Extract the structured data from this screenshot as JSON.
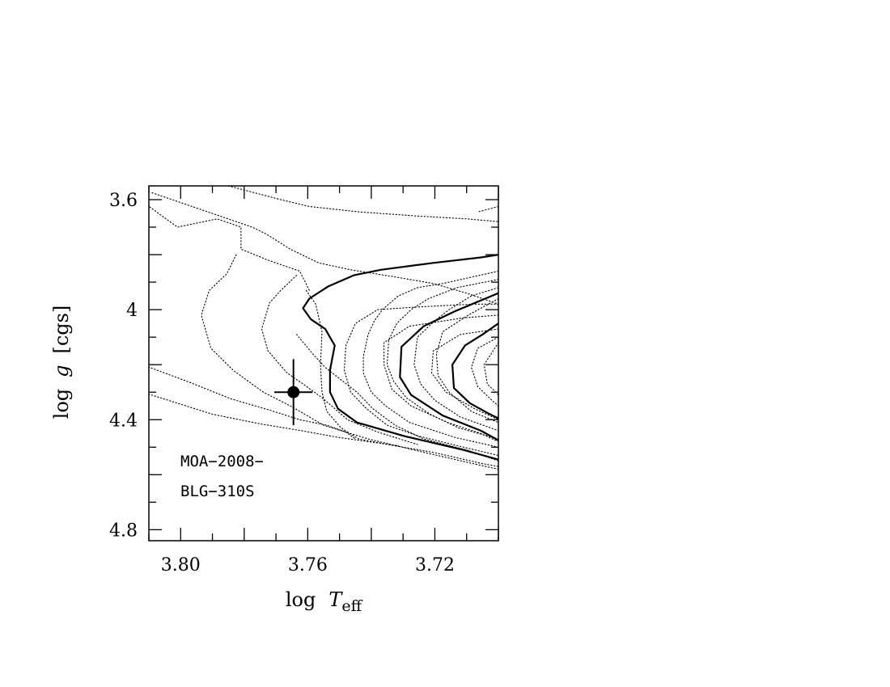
{
  "chart_data": {
    "type": "line",
    "title": "",
    "xlabel": "log T_eff",
    "ylabel": "log g [cgs]",
    "xlabel_main": "log",
    "xlabel_var": "T",
    "xlabel_sub": "eff",
    "ylabel_main": "log",
    "ylabel_var": "g",
    "ylabel_unit": "[cgs]",
    "xlim": [
      3.81,
      3.7
    ],
    "ylim": [
      4.84,
      3.55
    ],
    "x_reversed": true,
    "y_reversed": true,
    "x_ticks": [
      {
        "value": 3.8,
        "label": "3.80"
      },
      {
        "value": 3.76,
        "label": "3.76"
      },
      {
        "value": 3.72,
        "label": "3.72"
      }
    ],
    "y_ticks": [
      {
        "value": 3.6,
        "label": "3.6"
      },
      {
        "value": 4.0,
        "label": "4"
      },
      {
        "value": 4.4,
        "label": "4.4"
      },
      {
        "value": 4.8,
        "label": "4.8"
      }
    ],
    "annotation_lines": [
      "MOA−2008−",
      "BLG−310S"
    ],
    "data_point": {
      "x": 3.7645,
      "y": 4.3,
      "xerr": 0.005,
      "yerr": 0.12
    },
    "series": [
      {
        "style": "solid",
        "points": [
          [
            3.7,
            3.8
          ],
          [
            3.7055,
            3.81
          ],
          [
            3.7205,
            3.83
          ],
          [
            3.737,
            3.855
          ],
          [
            3.7455,
            3.875
          ],
          [
            3.7535,
            3.915
          ],
          [
            3.7595,
            3.96
          ],
          [
            3.7615,
            3.995
          ],
          [
            3.759,
            4.035
          ],
          [
            3.7545,
            4.07
          ],
          [
            3.7515,
            4.13
          ],
          [
            3.753,
            4.22
          ],
          [
            3.753,
            4.3
          ],
          [
            3.7505,
            4.36
          ],
          [
            3.7445,
            4.41
          ],
          [
            3.7295,
            4.46
          ],
          [
            3.711,
            4.51
          ],
          [
            3.7,
            4.545
          ]
        ]
      },
      {
        "style": "solid",
        "points": [
          [
            3.7,
            3.94
          ],
          [
            3.7135,
            4.005
          ],
          [
            3.7235,
            4.06
          ],
          [
            3.7305,
            4.135
          ],
          [
            3.731,
            4.245
          ],
          [
            3.7275,
            4.31
          ],
          [
            3.7175,
            4.385
          ],
          [
            3.7055,
            4.44
          ],
          [
            3.7,
            4.475
          ]
        ]
      },
      {
        "style": "solid",
        "points": [
          [
            3.7,
            4.05
          ],
          [
            3.705,
            4.09
          ],
          [
            3.7105,
            4.13
          ],
          [
            3.7145,
            4.2
          ],
          [
            3.714,
            4.285
          ],
          [
            3.709,
            4.34
          ],
          [
            3.7035,
            4.375
          ],
          [
            3.7,
            4.395
          ]
        ]
      },
      {
        "style": "dotted",
        "points": [
          [
            3.809,
            3.575
          ],
          [
            3.7775,
            3.7
          ],
          [
            3.773,
            3.725
          ],
          [
            3.7655,
            3.78
          ],
          [
            3.7565,
            3.83
          ],
          [
            3.7465,
            3.855
          ],
          [
            3.733,
            3.88
          ],
          [
            3.7205,
            3.905
          ],
          [
            3.71,
            3.94
          ],
          [
            3.7,
            3.98
          ]
        ]
      },
      {
        "style": "dotted",
        "points": [
          [
            3.7605,
            3.93
          ],
          [
            3.7575,
            3.98
          ],
          [
            3.7555,
            4.08
          ],
          [
            3.756,
            4.2
          ],
          [
            3.7555,
            4.3
          ],
          [
            3.754,
            4.37
          ],
          [
            3.7495,
            4.43
          ],
          [
            3.744,
            4.47
          ],
          [
            3.735,
            4.49
          ],
          [
            3.72,
            4.52
          ],
          [
            3.705,
            4.56
          ],
          [
            3.7,
            4.57
          ]
        ]
      },
      {
        "style": "dotted",
        "points": [
          [
            3.7,
            3.98
          ],
          [
            3.708,
            3.98
          ],
          [
            3.725,
            3.99
          ],
          [
            3.738,
            4.0
          ],
          [
            3.745,
            4.05
          ],
          [
            3.748,
            4.13
          ],
          [
            3.7485,
            4.22
          ],
          [
            3.7465,
            4.3
          ],
          [
            3.7415,
            4.36
          ],
          [
            3.735,
            4.42
          ],
          [
            3.725,
            4.46
          ],
          [
            3.711,
            4.5
          ],
          [
            3.7,
            4.53
          ]
        ]
      },
      {
        "style": "dotted",
        "points": [
          [
            3.7,
            4.02
          ],
          [
            3.711,
            4.03
          ],
          [
            3.728,
            4.06
          ],
          [
            3.736,
            4.12
          ],
          [
            3.736,
            4.2
          ],
          [
            3.7335,
            4.29
          ],
          [
            3.7275,
            4.35
          ],
          [
            3.716,
            4.41
          ],
          [
            3.7055,
            4.45
          ],
          [
            3.7,
            4.48
          ]
        ]
      },
      {
        "style": "dotted",
        "points": [
          [
            3.7,
            4.07
          ],
          [
            3.712,
            4.09
          ],
          [
            3.7205,
            4.15
          ],
          [
            3.721,
            4.23
          ],
          [
            3.7165,
            4.3
          ],
          [
            3.7075,
            4.36
          ],
          [
            3.7,
            4.4
          ]
        ]
      },
      {
        "style": "dotted",
        "points": [
          [
            3.8105,
            3.62
          ],
          [
            3.801,
            3.7
          ],
          [
            3.7885,
            3.67
          ],
          [
            3.781,
            3.7
          ],
          [
            3.781,
            3.78
          ],
          [
            3.7725,
            3.82
          ],
          [
            3.7625,
            3.86
          ],
          [
            3.7595,
            3.93
          ]
        ]
      },
      {
        "style": "dotted",
        "points": [
          [
            3.785,
            3.55
          ],
          [
            3.7685,
            3.6
          ],
          [
            3.7595,
            3.625
          ],
          [
            3.7435,
            3.645
          ],
          [
            3.725,
            3.66
          ],
          [
            3.71,
            3.67
          ],
          [
            3.7,
            3.68
          ]
        ]
      },
      {
        "style": "dotted",
        "points": [
          [
            3.7,
            3.625
          ],
          [
            3.7065,
            3.645
          ]
        ]
      },
      {
        "style": "dotted",
        "points": [
          [
            3.812,
            4.2
          ],
          [
            3.797,
            4.265
          ],
          [
            3.784,
            4.325
          ],
          [
            3.772,
            4.365
          ],
          [
            3.7625,
            4.4
          ],
          [
            3.754,
            4.42
          ],
          [
            3.748,
            4.445
          ],
          [
            3.745,
            4.47
          ]
        ]
      },
      {
        "style": "dotted",
        "points": [
          [
            3.812,
            4.3
          ],
          [
            3.79,
            4.38
          ],
          [
            3.775,
            4.415
          ],
          [
            3.762,
            4.44
          ],
          [
            3.75,
            4.465
          ],
          [
            3.7315,
            4.495
          ]
        ]
      },
      {
        "style": "dotted",
        "points": [
          [
            3.7825,
            3.8
          ],
          [
            3.7855,
            3.87
          ],
          [
            3.791,
            3.93
          ],
          [
            3.7935,
            4.02
          ],
          [
            3.7905,
            4.14
          ],
          [
            3.7835,
            4.22
          ],
          [
            3.774,
            4.3
          ],
          [
            3.7655,
            4.35
          ],
          [
            3.755,
            4.42
          ],
          [
            3.741,
            4.47
          ],
          [
            3.723,
            4.52
          ],
          [
            3.706,
            4.565
          ],
          [
            3.7,
            4.58
          ]
        ]
      },
      {
        "style": "dotted",
        "points": [
          [
            3.7635,
            3.875
          ],
          [
            3.7685,
            3.93
          ],
          [
            3.772,
            3.975
          ],
          [
            3.7745,
            4.07
          ],
          [
            3.7725,
            4.15
          ],
          [
            3.7665,
            4.23
          ],
          [
            3.7615,
            4.27
          ],
          [
            3.7555,
            4.32
          ],
          [
            3.7475,
            4.4
          ],
          [
            3.738,
            4.445
          ],
          [
            3.7255,
            4.49
          ]
        ]
      },
      {
        "style": "dotted",
        "points": [
          [
            3.7635,
            4.09
          ],
          [
            3.7585,
            4.16
          ],
          [
            3.7545,
            4.21
          ],
          [
            3.749,
            4.26
          ],
          [
            3.7445,
            4.3
          ],
          [
            3.7395,
            4.36
          ],
          [
            3.7325,
            4.42
          ],
          [
            3.7235,
            4.47
          ],
          [
            3.71,
            4.51
          ],
          [
            3.7,
            4.55
          ]
        ]
      },
      {
        "style": "dotted",
        "points": [
          [
            3.7,
            3.86
          ],
          [
            3.7175,
            3.905
          ],
          [
            3.7255,
            3.92
          ],
          [
            3.7315,
            3.95
          ],
          [
            3.7365,
            4.0
          ],
          [
            3.739,
            4.04
          ],
          [
            3.741,
            4.09
          ],
          [
            3.7425,
            4.17
          ],
          [
            3.7425,
            4.23
          ],
          [
            3.74,
            4.3
          ],
          [
            3.7355,
            4.35
          ],
          [
            3.728,
            4.41
          ],
          [
            3.7135,
            4.465
          ],
          [
            3.7,
            4.5
          ]
        ]
      },
      {
        "style": "dotted",
        "points": [
          [
            3.7,
            3.89
          ],
          [
            3.713,
            3.92
          ],
          [
            3.722,
            3.96
          ],
          [
            3.7275,
            4.0
          ],
          [
            3.732,
            4.05
          ],
          [
            3.7345,
            4.11
          ],
          [
            3.735,
            4.2
          ],
          [
            3.733,
            4.26
          ],
          [
            3.729,
            4.32
          ],
          [
            3.7215,
            4.38
          ],
          [
            3.7125,
            4.43
          ],
          [
            3.7,
            4.47
          ]
        ]
      },
      {
        "style": "dotted",
        "points": [
          [
            3.7,
            3.92
          ],
          [
            3.7085,
            3.95
          ],
          [
            3.7155,
            4.0
          ],
          [
            3.72,
            4.04
          ],
          [
            3.7255,
            4.1
          ],
          [
            3.7265,
            4.2
          ],
          [
            3.7245,
            4.27
          ],
          [
            3.72,
            4.33
          ],
          [
            3.712,
            4.39
          ],
          [
            3.7,
            4.44
          ]
        ]
      },
      {
        "style": "dotted",
        "points": [
          [
            3.7,
            3.96
          ],
          [
            3.7095,
            4.02
          ],
          [
            3.7175,
            4.08
          ],
          [
            3.7195,
            4.16
          ],
          [
            3.719,
            4.24
          ],
          [
            3.7155,
            4.3
          ],
          [
            3.7085,
            4.37
          ],
          [
            3.7,
            4.41
          ]
        ]
      },
      {
        "style": "dotted",
        "points": [
          [
            3.7,
            4.1
          ],
          [
            3.7065,
            4.14
          ],
          [
            3.7085,
            4.21
          ],
          [
            3.7065,
            4.28
          ],
          [
            3.702,
            4.33
          ],
          [
            3.7,
            4.35
          ]
        ]
      },
      {
        "style": "dotted",
        "points": [
          [
            3.7,
            4.12
          ],
          [
            3.7045,
            4.2
          ],
          [
            3.7035,
            4.27
          ],
          [
            3.7,
            4.31
          ]
        ]
      }
    ]
  }
}
